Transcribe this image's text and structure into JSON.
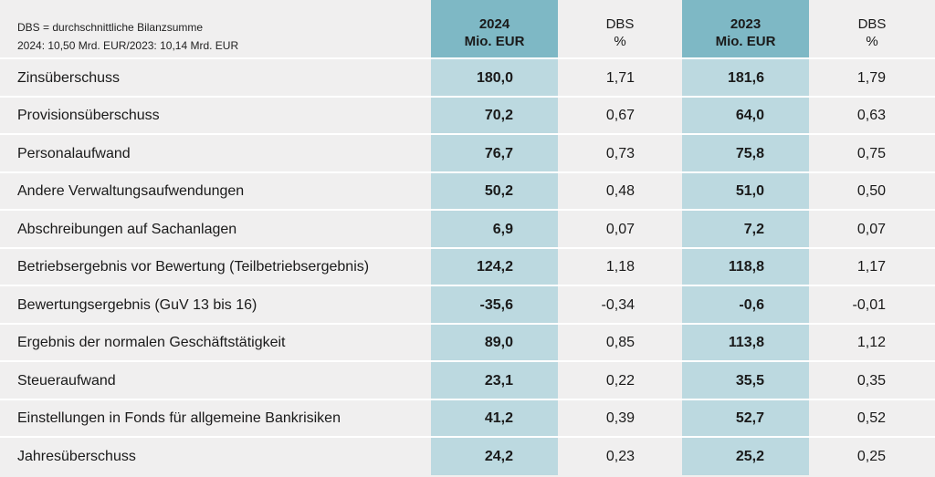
{
  "note": {
    "line1": "DBS = durchschnittliche Bilanzsumme",
    "line2": "2024: 10,50 Mrd. EUR/2023: 10,14 Mrd. EUR"
  },
  "headers": {
    "y2024": [
      "2024",
      "Mio. EUR"
    ],
    "dbs1": [
      "DBS",
      "%"
    ],
    "y2023": [
      "2023",
      "Mio. EUR"
    ],
    "dbs2": [
      "DBS",
      "%"
    ]
  },
  "rows": [
    {
      "label": "Zinsüberschuss",
      "v2024": "180,0",
      "dbs2024": "1,71",
      "v2023": "181,6",
      "dbs2023": "1,79"
    },
    {
      "label": "Provisionsüberschuss",
      "v2024": "70,2",
      "dbs2024": "0,67",
      "v2023": "64,0",
      "dbs2023": "0,63"
    },
    {
      "label": "Personalaufwand",
      "v2024": "76,7",
      "dbs2024": "0,73",
      "v2023": "75,8",
      "dbs2023": "0,75"
    },
    {
      "label": "Andere Verwaltungsaufwendungen",
      "v2024": "50,2",
      "dbs2024": "0,48",
      "v2023": "51,0",
      "dbs2023": "0,50"
    },
    {
      "label": "Abschreibungen auf Sachanlagen",
      "v2024": "6,9",
      "dbs2024": "0,07",
      "v2023": "7,2",
      "dbs2023": "0,07"
    },
    {
      "label": "Betriebsergebnis vor Bewertung (Teilbetriebsergebnis)",
      "v2024": "124,2",
      "dbs2024": "1,18",
      "v2023": "118,8",
      "dbs2023": "1,17"
    },
    {
      "label": "Bewertungsergebnis (GuV 13 bis 16)",
      "v2024": "-35,6",
      "dbs2024": "-0,34",
      "v2023": "-0,6",
      "dbs2023": "-0,01"
    },
    {
      "label": "Ergebnis der normalen Geschäftstätigkeit",
      "v2024": "89,0",
      "dbs2024": "0,85",
      "v2023": "113,8",
      "dbs2023": "1,12"
    },
    {
      "label": "Steueraufwand",
      "v2024": "23,1",
      "dbs2024": "0,22",
      "v2023": "35,5",
      "dbs2023": "0,35"
    },
    {
      "label": "Einstellungen in Fonds für allgemeine Bankrisiken",
      "v2024": "41,2",
      "dbs2024": "0,39",
      "v2023": "52,7",
      "dbs2023": "0,52"
    },
    {
      "label": "Jahresüberschuss",
      "v2024": "24,2",
      "dbs2024": "0,23",
      "v2023": "25,2",
      "dbs2023": "0,25"
    }
  ],
  "colors": {
    "header_accent": "#7eb8c5",
    "column_accent": "#bcd9e0",
    "background": "#f0efef"
  }
}
